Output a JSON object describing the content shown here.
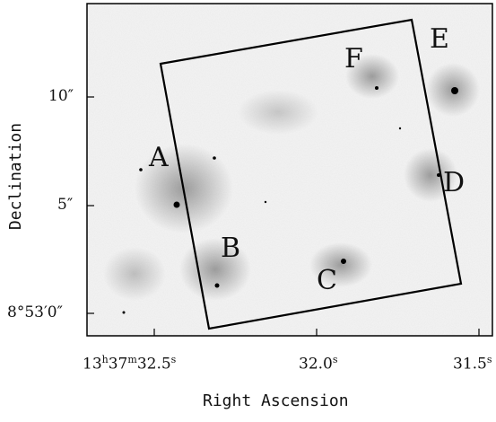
{
  "image": {
    "description_free": true,
    "background_color": "#f5f5f5",
    "frame_color": "#000000"
  },
  "region_labels": [
    "A",
    "B",
    "C",
    "D",
    "E",
    "F"
  ],
  "x_axis": {
    "title": "Right Ascension",
    "ticks": [
      {
        "main": "13",
        "sup1": "h",
        "mid": "37",
        "sup2": "m",
        "tail": "32.5",
        "sup3": "s"
      },
      {
        "main": "32.0",
        "sup3": "s"
      },
      {
        "main": "31.5",
        "sup3": "s"
      }
    ]
  },
  "y_axis": {
    "title": "Declination",
    "ticks": [
      "10″",
      "5″",
      "8°53′0″"
    ]
  }
}
